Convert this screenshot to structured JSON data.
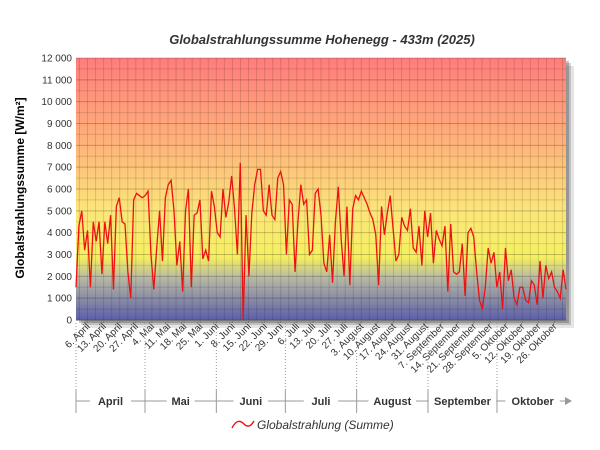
{
  "chart_data": {
    "type": "line",
    "title": "Globalstrahlungssumme Hohenegg - 433m (2025)",
    "ylabel": "Globalstrahlungssumme [W/m²]",
    "xlabel": "",
    "ylim": [
      0,
      12000
    ],
    "y_ticks": [
      0,
      1000,
      2000,
      3000,
      4000,
      5000,
      6000,
      7000,
      8000,
      9000,
      10000,
      11000,
      12000
    ],
    "y_tick_labels": [
      "0",
      "1 000",
      "2 000",
      "3 000",
      "4 000",
      "5 000",
      "6 000",
      "7 000",
      "8 000",
      "9 000",
      "10 000",
      "11 000",
      "12 000"
    ],
    "x_start": "2025-04-01",
    "x_end": "2025-10-31",
    "x_tick_labels": [
      "6. April",
      "13. April",
      "20. April",
      "27. April",
      "4. Mai",
      "11. Mai",
      "18. Mai",
      "25. Mai",
      "1. Juni",
      "8. Juni",
      "15. Juni",
      "22. Juni",
      "29. Juni",
      "6. Juli",
      "13. Juli",
      "20. Juli",
      "27. Juli",
      "3. August",
      "10. August",
      "17. August",
      "24. August",
      "31. August",
      "7. September",
      "14. September",
      "21. September",
      "28. September",
      "5. Oktober",
      "12. Oktober",
      "19. Oktober",
      "26. Oktober"
    ],
    "months": [
      "April",
      "Mai",
      "Juni",
      "Juli",
      "August",
      "September",
      "Oktober"
    ],
    "grid": true,
    "legend_position": "bottom-center",
    "series": [
      {
        "name": "Globalstrahlung (Summe)",
        "color": "#ee1111",
        "values": [
          1500,
          4300,
          5000,
          3200,
          4100,
          1500,
          4500,
          3600,
          4500,
          2100,
          4500,
          3500,
          4800,
          1400,
          5200,
          5600,
          4500,
          4400,
          2200,
          1000,
          5500,
          5800,
          5700,
          5600,
          5700,
          5900,
          3000,
          1400,
          3300,
          5000,
          2700,
          5600,
          6200,
          6400,
          5000,
          2500,
          3600,
          1300,
          5000,
          6000,
          1500,
          4800,
          4900,
          5500,
          2800,
          3200,
          2700,
          5900,
          5200,
          4000,
          3800,
          6000,
          4700,
          5400,
          6600,
          5100,
          3000,
          7200,
          0,
          4800,
          2000,
          4900,
          6200,
          6900,
          6900,
          5000,
          4800,
          6200,
          4800,
          4600,
          6500,
          6800,
          6200,
          3000,
          5500,
          5300,
          2200,
          4500,
          6200,
          5300,
          5500,
          3000,
          3200,
          5800,
          6000,
          4800,
          2600,
          2200,
          3900,
          1700,
          4500,
          6100,
          3700,
          2000,
          5200,
          1600,
          5100,
          5700,
          5500,
          5900,
          5600,
          5300,
          4900,
          4600,
          3900,
          1600,
          5200,
          3900,
          4900,
          5700,
          4200,
          2700,
          3000,
          4700,
          4300,
          4100,
          5100,
          3300,
          3100,
          4300,
          2500,
          5000,
          3800,
          4900,
          2600,
          4100,
          3700,
          3400,
          4300,
          1300,
          4400,
          2200,
          2100,
          2200,
          3500,
          1100,
          4000,
          4200,
          3800,
          2200,
          900,
          500,
          1500,
          3300,
          2600,
          3100,
          1500,
          2200,
          500,
          3300,
          1800,
          2300,
          1000,
          700,
          1500,
          1500,
          900,
          800,
          1800,
          1600,
          700,
          2700,
          1000,
          2500,
          1900,
          2200,
          1500,
          1300,
          1000,
          2300,
          1400
        ]
      }
    ]
  }
}
